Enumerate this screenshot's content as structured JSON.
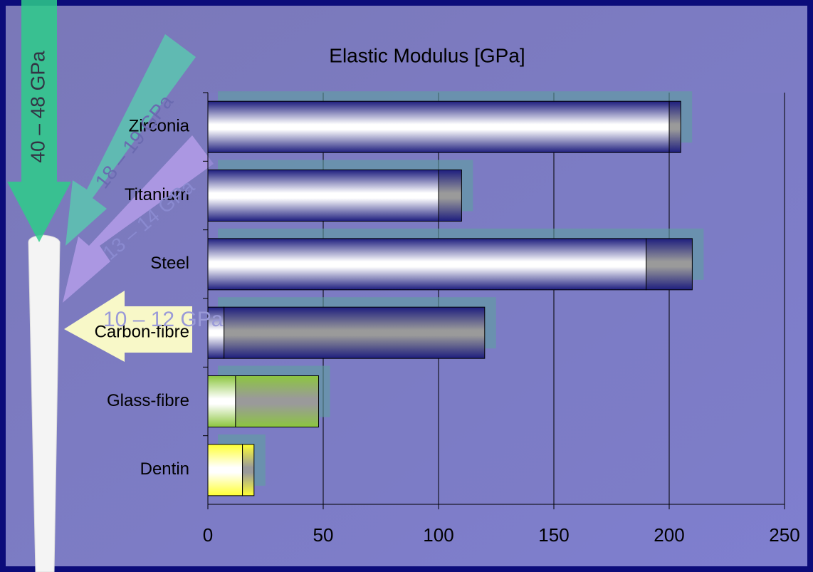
{
  "chart_data": {
    "type": "stacked-bar-horizontal",
    "title": "Elastic Modulus [GPa]",
    "categories": [
      "Zirconia",
      "Titanium",
      "Steel",
      "Carbon-fibre",
      "Glass-fibre",
      "Dentin"
    ],
    "series": [
      {
        "color": "#ffffff",
        "values": [
          200,
          100,
          190,
          7,
          12,
          15
        ]
      },
      {
        "color": "#9a9a9a",
        "values": [
          5,
          10,
          20,
          113,
          36,
          5
        ]
      }
    ],
    "edge_colors": [
      "#1e1e7e",
      "#1e1e7e",
      "#1e1e7e",
      "#1e1e7e",
      "#8cc63f",
      "#ffff33"
    ],
    "xlim": [
      0,
      250
    ],
    "xticks": [
      0,
      50,
      100,
      150,
      200,
      250
    ],
    "grid": true,
    "annotations": [
      "40 – 48 GPa",
      "18 – 19 GPa",
      "13 – 14 GPa",
      "10 – 12 GPa"
    ]
  }
}
